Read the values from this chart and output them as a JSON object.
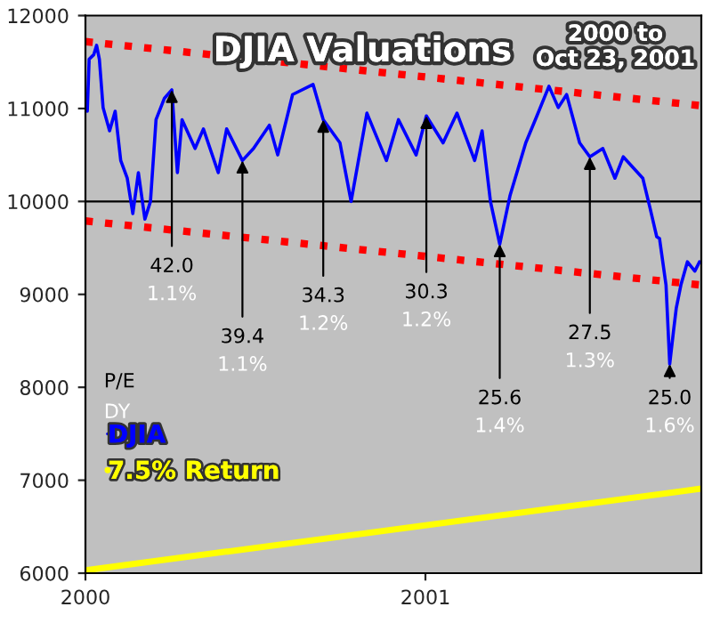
{
  "chart_data": {
    "type": "line",
    "title": "DJIA Valuations",
    "subtitle": "2000 to\nOct 23, 2001",
    "xlim": [
      "2000-01-01",
      "2001-10-25"
    ],
    "xticks": [
      {
        "value": "2000-01-01",
        "label": "2000"
      },
      {
        "value": "2001-01-01",
        "label": "2001"
      }
    ],
    "ylim": [
      6000,
      12000
    ],
    "yticks": [
      6000,
      7000,
      8000,
      9000,
      10000,
      11000,
      12000
    ],
    "grid": false,
    "legend": "lower left",
    "ref_lines": [
      {
        "axis": "y",
        "value": 10000,
        "color": "#000000"
      }
    ],
    "series": [
      {
        "name": "DJIA",
        "color": "#0000ff",
        "line_style": "solid",
        "x": [
          "2000-01-03",
          "2000-01-05",
          "2000-01-10",
          "2000-01-13",
          "2000-01-16",
          "2000-01-20",
          "2000-01-27",
          "2000-02-02",
          "2000-02-08",
          "2000-02-15",
          "2000-02-21",
          "2000-02-27",
          "2000-03-05",
          "2000-03-11",
          "2000-03-17",
          "2000-03-26",
          "2000-04-03",
          "2000-04-09",
          "2000-04-14",
          "2000-04-28",
          "2000-05-07",
          "2000-05-23",
          "2000-06-01",
          "2000-06-18",
          "2000-06-30",
          "2000-07-17",
          "2000-07-26",
          "2000-08-11",
          "2000-09-02",
          "2000-09-13",
          "2000-10-01",
          "2000-10-13",
          "2000-10-30",
          "2000-11-20",
          "2000-12-03",
          "2000-12-22",
          "2001-01-02",
          "2001-01-20",
          "2001-02-04",
          "2001-02-23",
          "2001-03-03",
          "2001-03-12",
          "2001-03-22",
          "2001-04-02",
          "2001-04-19",
          "2001-05-01",
          "2001-05-14",
          "2001-05-24",
          "2001-06-02",
          "2001-06-16",
          "2001-06-27",
          "2001-07-11",
          "2001-07-24",
          "2001-08-02",
          "2001-08-23",
          "2001-08-31",
          "2001-09-07",
          "2001-09-10",
          "2001-09-17",
          "2001-09-21",
          "2001-09-25",
          "2001-09-28",
          "2001-10-03",
          "2001-10-10",
          "2001-10-18",
          "2001-10-23"
        ],
        "values": [
          10970,
          11530,
          11580,
          11680,
          11530,
          11010,
          10760,
          10970,
          10440,
          10250,
          9870,
          10310,
          9810,
          10000,
          10880,
          11110,
          11200,
          10310,
          10880,
          10570,
          10780,
          10310,
          10780,
          10440,
          10570,
          10820,
          10500,
          11150,
          11260,
          10880,
          10630,
          10000,
          10950,
          10440,
          10880,
          10500,
          10920,
          10630,
          10950,
          10440,
          10760,
          10000,
          9540,
          10060,
          10630,
          10920,
          11240,
          11010,
          11150,
          10630,
          10480,
          10570,
          10250,
          10480,
          10250,
          9920,
          9620,
          9600,
          9100,
          8250,
          8600,
          8850,
          9100,
          9350,
          9250,
          9350
        ]
      },
      {
        "name": "7.5% Return",
        "color": "#ffff00",
        "line_style": "solid",
        "x": [
          "2000-01-01",
          "2001-10-25"
        ],
        "values": [
          6030,
          6910
        ]
      },
      {
        "color": "#ff0000",
        "line_style": "dotted",
        "x": [
          "2000-01-01",
          "2001-10-25"
        ],
        "values": [
          11720,
          11030
        ]
      },
      {
        "color": "#ff0000",
        "line_style": "dotted",
        "x": [
          "2000-01-01",
          "2001-10-25"
        ],
        "values": [
          9790,
          9100
        ]
      }
    ],
    "annotations": [
      {
        "text": "42.0",
        "x": "2000-04-03",
        "y": 11200
      },
      {
        "text": "39.4",
        "x": "2000-06-18",
        "y": 10440
      },
      {
        "text": "34.3",
        "x": "2000-09-13",
        "y": 10880
      },
      {
        "text": "30.3",
        "x": "2001-01-02",
        "y": 10920
      },
      {
        "text": "25.6",
        "x": "2001-03-22",
        "y": 9540
      },
      {
        "text": "27.5",
        "x": "2001-06-27",
        "y": 10480
      },
      {
        "text": "25.0",
        "x": "2001-09-21",
        "y": 8250
      },
      "1.1%",
      "1.1%",
      "1.2%",
      "1.2%",
      "1.4%",
      "1.3%",
      "1.6%",
      "P/E",
      "DY"
    ]
  }
}
